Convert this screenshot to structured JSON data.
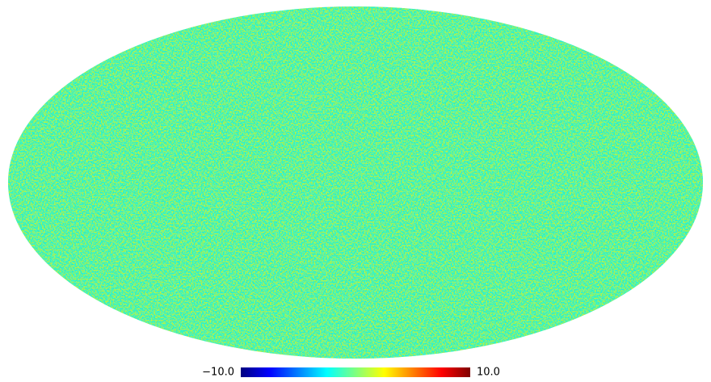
{
  "chart_data": {
    "type": "mollweide",
    "colormap": "jet",
    "clim": [
      -10,
      10
    ],
    "cticks": [
      {
        "value": -10,
        "label": "−10.0"
      },
      {
        "value": 10,
        "label": "10.0"
      }
    ]
  }
}
